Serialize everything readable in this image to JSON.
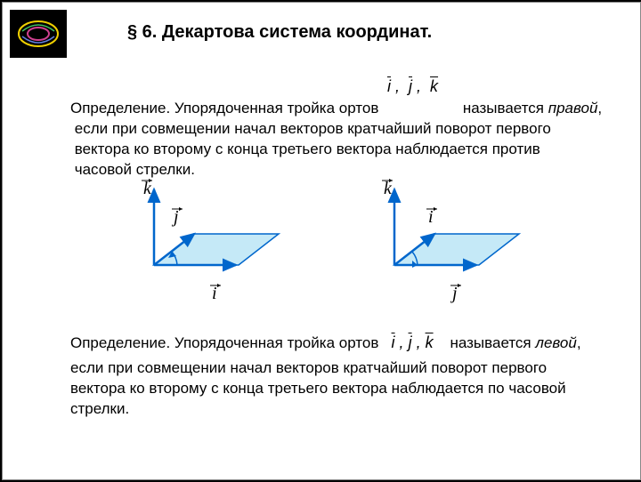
{
  "title": "§ 6. Декартова система координат.",
  "notation_top_html": "<span class='bar'>i</span> , &nbsp;<span class='bar'>j</span> , &nbsp;<span class='bar'>k</span>",
  "def1": {
    "line1_a": "Определение. Упорядоченная тройка ортов",
    "line1_b": "называется ",
    "line1_c": "правой",
    "line1_d": ",",
    "line2": "если при совмещении начал векторов кратчайший поворот первого",
    "line3": "вектора ко второму с конца третьего вектора наблюдается против",
    "line4": "часовой стрелки."
  },
  "diagrams": {
    "vectors": [
      "k",
      "j",
      "i"
    ],
    "right": {
      "axis_top": "k",
      "axis_left_upper": "j",
      "axis_right_lower": "i",
      "plane_fill": "#c5e9f7",
      "plane_stroke": "#0066cc",
      "axis_stroke": "#0066cc",
      "axis_width": 2
    },
    "left": {
      "axis_top": "k",
      "axis_left_upper": "i",
      "axis_right_lower": "j",
      "plane_fill": "#c5e9f7",
      "plane_stroke": "#0066cc",
      "axis_stroke": "#0066cc",
      "axis_width": 2
    }
  },
  "def2": {
    "line1_a": "Определение. Упорядоченная тройка ортов",
    "notation_html": "<span class='bar'>i</span> , <span class='bar'>j</span> , <span class='bar'>k</span>",
    "line1_b": "называется ",
    "line1_c": "левой",
    "line1_d": ",",
    "line2": "если при совмещении начал векторов кратчайший поворот первого",
    "line3": "вектора ко второму с конца третьего вектора наблюдается по часовой",
    "line4": "стрелки."
  },
  "colors": {
    "background": "#ffffff",
    "text": "#000000",
    "arrow": "#0066cc",
    "plane": "#c5e9f7"
  }
}
